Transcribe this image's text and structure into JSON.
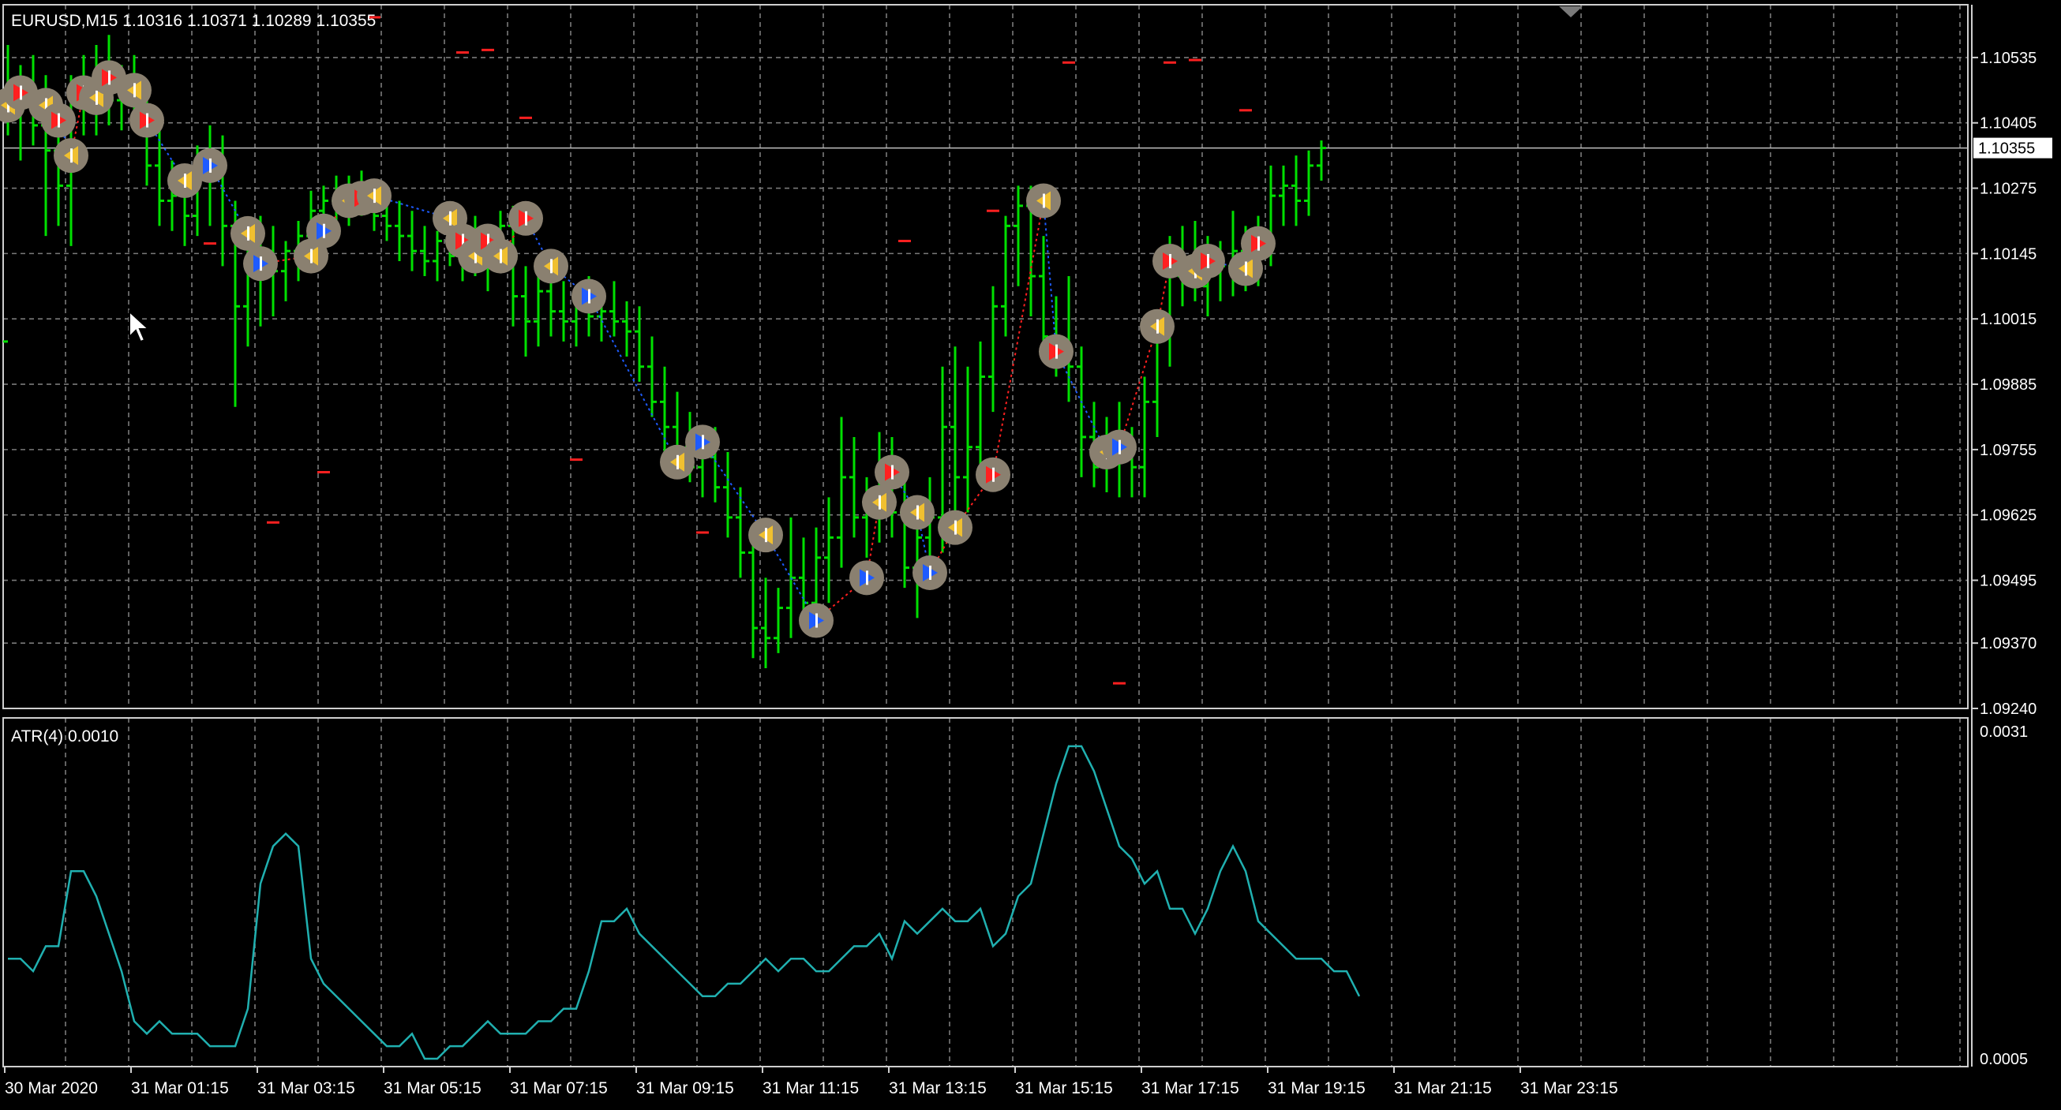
{
  "symbol_info": "EURUSD,M15  1.10316 1.10371 1.10289 1.10355",
  "current_price_label": "1.10355",
  "indicator_label": "ATR(4) 0.0010",
  "price_ticks": [
    "1.10535",
    "1.10405",
    "1.10275",
    "1.10145",
    "1.10015",
    "1.09885",
    "1.09755",
    "1.09625",
    "1.09495",
    "1.09370",
    "1.09240"
  ],
  "atr_ticks": [
    "0.0031",
    "0.0005"
  ],
  "time_ticks": [
    "30 Mar 2020",
    "31 Mar 01:15",
    "31 Mar 03:15",
    "31 Mar 05:15",
    "31 Mar 07:15",
    "31 Mar 09:15",
    "31 Mar 11:15",
    "31 Mar 13:15",
    "31 Mar 15:15",
    "31 Mar 17:15",
    "31 Mar 19:15",
    "31 Mar 21:15",
    "31 Mar 23:15"
  ],
  "colors": {
    "background": "#000000",
    "grid": "#7a7a7a",
    "bars": "#00e000",
    "atr_line": "#20b0b0",
    "text": "#ffffff",
    "buy_arrow": "#ff2020",
    "sell_arrow": "#1e5bff",
    "marker_circle": "#8a8070",
    "marker_yellow": "#f0c030"
  },
  "chart_data": [
    {
      "type": "ohlc",
      "symbol": "EURUSD",
      "timeframe": "M15",
      "ylim": [
        1.0924,
        1.1064
      ],
      "bars": [
        [
          1.0997,
          1.1056,
          1.1038,
          1.1045
        ],
        [
          1.1045,
          1.1052,
          1.1033,
          1.1046
        ],
        [
          1.1046,
          1.1054,
          1.1036,
          1.104
        ],
        [
          1.104,
          1.105,
          1.1018,
          1.1035
        ],
        [
          1.1035,
          1.1046,
          1.102,
          1.1028
        ],
        [
          1.1028,
          1.105,
          1.1016,
          1.1046
        ],
        [
          1.1046,
          1.1054,
          1.1038,
          1.1048
        ],
        [
          1.1048,
          1.1056,
          1.1038,
          1.1051
        ],
        [
          1.1051,
          1.1058,
          1.104,
          1.1045
        ],
        [
          1.1045,
          1.1052,
          1.1039,
          1.1047
        ],
        [
          1.1047,
          1.1054,
          1.104,
          1.1043
        ],
        [
          1.1043,
          1.1048,
          1.1028,
          1.1032
        ],
        [
          1.1032,
          1.104,
          1.102,
          1.1025
        ],
        [
          1.1025,
          1.1033,
          1.1019,
          1.1026
        ],
        [
          1.1026,
          1.1032,
          1.1016,
          1.1022
        ],
        [
          1.1022,
          1.1036,
          1.1018,
          1.103
        ],
        [
          1.103,
          1.104,
          1.102,
          1.1032
        ],
        [
          1.1032,
          1.1038,
          1.1012,
          1.102
        ],
        [
          1.102,
          1.1025,
          1.0984,
          1.1004
        ],
        [
          1.1004,
          1.102,
          1.0996,
          1.1012
        ],
        [
          1.1012,
          1.1022,
          1.1,
          1.1015
        ],
        [
          1.1015,
          1.102,
          1.1002,
          1.1011
        ],
        [
          1.1011,
          1.1017,
          1.1005,
          1.1015
        ],
        [
          1.1015,
          1.1021,
          1.1009,
          1.1018
        ],
        [
          1.1018,
          1.1027,
          1.1012,
          1.1023
        ],
        [
          1.1023,
          1.1028,
          1.1015,
          1.1025
        ],
        [
          1.1025,
          1.103,
          1.1018,
          1.1026
        ],
        [
          1.1026,
          1.103,
          1.102,
          1.1027
        ],
        [
          1.1027,
          1.1031,
          1.1022,
          1.1024
        ],
        [
          1.1024,
          1.1028,
          1.1019,
          1.1022
        ],
        [
          1.1022,
          1.1027,
          1.1017,
          1.102
        ],
        [
          1.102,
          1.1025,
          1.1013,
          1.1018
        ],
        [
          1.1018,
          1.1023,
          1.1011,
          1.1015
        ],
        [
          1.1015,
          1.102,
          1.101,
          1.1013
        ],
        [
          1.1013,
          1.1019,
          1.1009,
          1.1017
        ],
        [
          1.1017,
          1.1022,
          1.1012,
          1.1014
        ],
        [
          1.1014,
          1.1019,
          1.1009,
          1.1016
        ],
        [
          1.1016,
          1.1022,
          1.101,
          1.1013
        ],
        [
          1.1013,
          1.102,
          1.1007,
          1.1018
        ],
        [
          1.1018,
          1.1023,
          1.1012,
          1.102
        ],
        [
          1.102,
          1.1024,
          1.1,
          1.1006
        ],
        [
          1.1006,
          1.1012,
          1.0994,
          1.1001
        ],
        [
          1.1001,
          1.101,
          1.0996,
          1.1007
        ],
        [
          1.1007,
          1.1012,
          1.0998,
          1.1003
        ],
        [
          1.1003,
          1.1009,
          1.0997,
          1.1001
        ],
        [
          1.1001,
          1.1008,
          1.0996,
          1.1004
        ],
        [
          1.1004,
          1.101,
          1.0998,
          1.1002
        ],
        [
          1.1002,
          1.1008,
          1.0997,
          1.1003
        ],
        [
          1.1003,
          1.1009,
          1.0998,
          1.1001
        ],
        [
          1.1001,
          1.1005,
          1.0994,
          1.0999
        ],
        [
          1.0999,
          1.1004,
          1.0989,
          1.0992
        ],
        [
          1.0992,
          1.0998,
          1.0982,
          1.0985
        ],
        [
          1.0985,
          1.0992,
          1.0975,
          1.098
        ],
        [
          1.098,
          1.0987,
          1.0972,
          1.0976
        ],
        [
          1.0976,
          1.0983,
          1.0969,
          1.0972
        ],
        [
          1.0972,
          1.098,
          1.0966,
          1.0974
        ],
        [
          1.0974,
          1.098,
          1.0965,
          1.0968
        ],
        [
          1.0968,
          1.0975,
          1.0958,
          1.0962
        ],
        [
          1.0962,
          1.0968,
          1.095,
          1.0955
        ],
        [
          1.0955,
          1.096,
          1.0934,
          1.094
        ],
        [
          1.094,
          1.095,
          1.0932,
          1.0938
        ],
        [
          1.0938,
          1.0948,
          1.0935,
          1.0944
        ],
        [
          1.0944,
          1.0962,
          1.0938,
          1.095
        ],
        [
          1.095,
          1.0958,
          1.0941,
          1.0945
        ],
        [
          1.0945,
          1.096,
          1.094,
          1.0954
        ],
        [
          1.0954,
          1.0966,
          1.0945,
          1.0958
        ],
        [
          1.0958,
          1.0982,
          1.0952,
          1.097
        ],
        [
          1.097,
          1.0978,
          1.0958,
          1.0962
        ],
        [
          1.0962,
          1.097,
          1.0954,
          1.0964
        ],
        [
          1.0964,
          1.0979,
          1.0957,
          1.0973
        ],
        [
          1.0973,
          1.0978,
          1.0958,
          1.0963
        ],
        [
          1.0963,
          1.0972,
          1.0948,
          1.0952
        ],
        [
          1.0952,
          1.0966,
          1.0942,
          1.0958
        ],
        [
          1.0958,
          1.097,
          1.095,
          1.0962
        ],
        [
          1.0962,
          1.0992,
          1.0955,
          1.098
        ],
        [
          1.098,
          1.0996,
          1.0962,
          1.097
        ],
        [
          1.097,
          1.0992,
          1.0963,
          1.0976
        ],
        [
          1.0976,
          1.0997,
          1.097,
          1.099
        ],
        [
          1.099,
          1.1008,
          1.0983,
          1.1004
        ],
        [
          1.1004,
          1.1022,
          1.0998,
          1.102
        ],
        [
          1.102,
          1.1028,
          1.1008,
          1.1024
        ],
        [
          1.1024,
          1.1028,
          1.1002,
          1.101
        ],
        [
          1.101,
          1.1018,
          1.0993,
          1.0998
        ],
        [
          1.0998,
          1.1006,
          1.099,
          1.0994
        ],
        [
          1.0994,
          1.101,
          1.0985,
          1.0992
        ],
        [
          1.0992,
          1.0996,
          1.097,
          1.0978
        ],
        [
          1.0978,
          1.0985,
          1.0968,
          1.0972
        ],
        [
          1.0972,
          1.0982,
          1.0967,
          1.0976
        ],
        [
          1.0976,
          1.0985,
          1.0966,
          1.0974
        ],
        [
          1.0974,
          1.098,
          1.0966,
          1.0972
        ],
        [
          1.0972,
          1.099,
          1.0966,
          1.0985
        ],
        [
          1.0985,
          1.1002,
          1.0978,
          1.0998
        ],
        [
          1.0998,
          1.1018,
          1.0992,
          1.101
        ],
        [
          1.101,
          1.102,
          1.1004,
          1.1012
        ],
        [
          1.1012,
          1.1021,
          1.1005,
          1.1008
        ],
        [
          1.1008,
          1.1018,
          1.1002,
          1.1013
        ],
        [
          1.1013,
          1.1017,
          1.1005,
          1.1012
        ],
        [
          1.1012,
          1.1023,
          1.1006,
          1.1015
        ],
        [
          1.1015,
          1.102,
          1.1007,
          1.1012
        ],
        [
          1.1012,
          1.1022,
          1.1008,
          1.1018
        ],
        [
          1.1018,
          1.1032,
          1.1012,
          1.1026
        ],
        [
          1.1026,
          1.1032,
          1.102,
          1.1028
        ],
        [
          1.1028,
          1.1034,
          1.102,
          1.1025
        ],
        [
          1.1025,
          1.1035,
          1.1022,
          1.1032
        ],
        [
          1.1032,
          1.1037,
          1.1029,
          1.10355
        ]
      ],
      "markers": [
        {
          "i": 0,
          "price": 1.1044,
          "kind": "sell"
        },
        {
          "i": 1,
          "price": 1.10465,
          "kind": "buy"
        },
        {
          "i": 3,
          "price": 1.1044,
          "kind": "sell"
        },
        {
          "i": 4,
          "price": 1.1041,
          "kind": "buy"
        },
        {
          "i": 5,
          "price": 1.1034,
          "kind": "sell"
        },
        {
          "i": 6,
          "price": 1.10465,
          "kind": "buy"
        },
        {
          "i": 7,
          "price": 1.10455,
          "kind": "sell"
        },
        {
          "i": 8,
          "price": 1.10495,
          "kind": "buy"
        },
        {
          "i": 10,
          "price": 1.1047,
          "kind": "sell"
        },
        {
          "i": 11,
          "price": 1.1041,
          "kind": "buy"
        },
        {
          "i": 14,
          "price": 1.1029,
          "kind": "sell"
        },
        {
          "i": 16,
          "price": 1.1032,
          "kind": "blue"
        },
        {
          "i": 19,
          "price": 1.10185,
          "kind": "sell"
        },
        {
          "i": 20,
          "price": 1.10125,
          "kind": "blue"
        },
        {
          "i": 24,
          "price": 1.1014,
          "kind": "sell"
        },
        {
          "i": 25,
          "price": 1.1019,
          "kind": "blue"
        },
        {
          "i": 27,
          "price": 1.1025,
          "kind": "sell"
        },
        {
          "i": 28,
          "price": 1.10255,
          "kind": "buy"
        },
        {
          "i": 29,
          "price": 1.1026,
          "kind": "sell"
        },
        {
          "i": 35,
          "price": 1.10215,
          "kind": "sell"
        },
        {
          "i": 36,
          "price": 1.1017,
          "kind": "buy"
        },
        {
          "i": 37,
          "price": 1.1014,
          "kind": "sell"
        },
        {
          "i": 38,
          "price": 1.1017,
          "kind": "buy"
        },
        {
          "i": 39,
          "price": 1.1014,
          "kind": "sell"
        },
        {
          "i": 41,
          "price": 1.10215,
          "kind": "buy"
        },
        {
          "i": 43,
          "price": 1.1012,
          "kind": "sell"
        },
        {
          "i": 46,
          "price": 1.1006,
          "kind": "blue"
        },
        {
          "i": 53,
          "price": 1.0973,
          "kind": "sell"
        },
        {
          "i": 55,
          "price": 1.0977,
          "kind": "blue"
        },
        {
          "i": 60,
          "price": 1.09585,
          "kind": "sell"
        },
        {
          "i": 64,
          "price": 1.09415,
          "kind": "blue"
        },
        {
          "i": 68,
          "price": 1.095,
          "kind": "blue"
        },
        {
          "i": 69,
          "price": 1.0965,
          "kind": "sell"
        },
        {
          "i": 70,
          "price": 1.0971,
          "kind": "buy"
        },
        {
          "i": 72,
          "price": 1.0963,
          "kind": "sell"
        },
        {
          "i": 73,
          "price": 1.0951,
          "kind": "blue"
        },
        {
          "i": 75,
          "price": 1.096,
          "kind": "sell"
        },
        {
          "i": 78,
          "price": 1.09705,
          "kind": "buy"
        },
        {
          "i": 82,
          "price": 1.1025,
          "kind": "sell"
        },
        {
          "i": 83,
          "price": 1.0995,
          "kind": "buy"
        },
        {
          "i": 87,
          "price": 1.0975,
          "kind": "sell"
        },
        {
          "i": 88,
          "price": 1.0976,
          "kind": "blue"
        },
        {
          "i": 91,
          "price": 1.1,
          "kind": "sell"
        },
        {
          "i": 92,
          "price": 1.1013,
          "kind": "buy"
        },
        {
          "i": 94,
          "price": 1.1011,
          "kind": "sell"
        },
        {
          "i": 95,
          "price": 1.1013,
          "kind": "buy"
        },
        {
          "i": 98,
          "price": 1.10115,
          "kind": "sell"
        },
        {
          "i": 99,
          "price": 1.10165,
          "kind": "buy"
        }
      ],
      "dashes": [
        {
          "i": 29,
          "price": 1.10615
        },
        {
          "i": 36,
          "price": 1.10545
        },
        {
          "i": 38,
          "price": 1.1055
        },
        {
          "i": 41,
          "price": 1.10415
        },
        {
          "i": 45,
          "price": 1.09735
        },
        {
          "i": 16,
          "price": 1.10165
        },
        {
          "i": 25,
          "price": 1.0971
        },
        {
          "i": 21,
          "price": 1.0961
        },
        {
          "i": 55,
          "price": 1.0959
        },
        {
          "i": 71,
          "price": 1.1017
        },
        {
          "i": 78,
          "price": 1.1023
        },
        {
          "i": 84,
          "price": 1.10525
        },
        {
          "i": 88,
          "price": 1.0929
        },
        {
          "i": 92,
          "price": 1.10525
        },
        {
          "i": 94,
          "price": 1.1053
        },
        {
          "i": 98,
          "price": 1.1043
        }
      ]
    },
    {
      "type": "line",
      "name": "ATR(4)",
      "ylim": [
        0.0005,
        0.0031
      ],
      "values": [
        0.0013,
        0.0013,
        0.0012,
        0.0014,
        0.0014,
        0.002,
        0.002,
        0.0018,
        0.0015,
        0.0012,
        0.0008,
        0.0007,
        0.0008,
        0.0007,
        0.0007,
        0.0007,
        0.0006,
        0.0006,
        0.0006,
        0.0009,
        0.0019,
        0.0022,
        0.0023,
        0.0022,
        0.0013,
        0.0011,
        0.001,
        0.0009,
        0.0008,
        0.0007,
        0.0006,
        0.0006,
        0.0007,
        0.0005,
        0.0005,
        0.0006,
        0.0006,
        0.0007,
        0.0008,
        0.0007,
        0.0007,
        0.0007,
        0.0008,
        0.0008,
        0.0009,
        0.0009,
        0.0012,
        0.0016,
        0.0016,
        0.0017,
        0.0015,
        0.0014,
        0.0013,
        0.0012,
        0.0011,
        0.001,
        0.001,
        0.0011,
        0.0011,
        0.0012,
        0.0013,
        0.0012,
        0.0013,
        0.0013,
        0.0012,
        0.0012,
        0.0013,
        0.0014,
        0.0014,
        0.0015,
        0.0013,
        0.0016,
        0.0015,
        0.0016,
        0.0017,
        0.0016,
        0.0016,
        0.0017,
        0.0014,
        0.0015,
        0.0018,
        0.0019,
        0.0023,
        0.0027,
        0.003,
        0.003,
        0.0028,
        0.0025,
        0.0022,
        0.0021,
        0.0019,
        0.002,
        0.0017,
        0.0017,
        0.0015,
        0.0017,
        0.002,
        0.0022,
        0.002,
        0.0016,
        0.0015,
        0.0014,
        0.0013,
        0.0013,
        0.0013,
        0.0012,
        0.0012,
        0.001
      ]
    }
  ]
}
